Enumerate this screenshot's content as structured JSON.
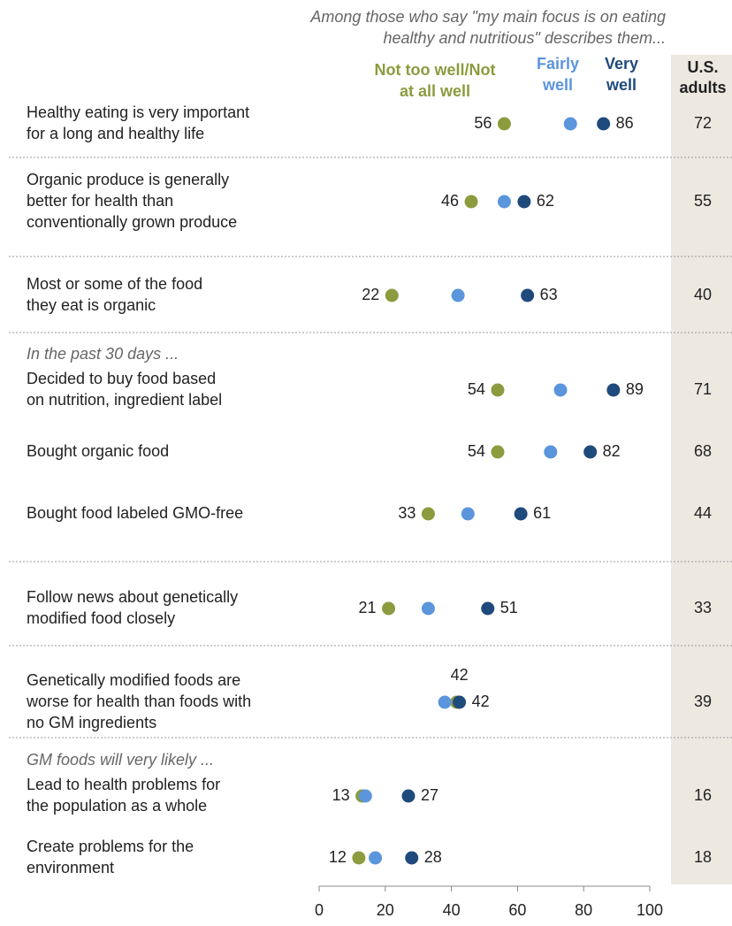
{
  "chart_data": {
    "type": "dot",
    "subtitle": [
      "Among those who say \"my main focus is on eating",
      "healthy and nutritious\" describes them..."
    ],
    "categories": [
      [
        "Healthy eating is very important",
        "for a long and healthy life"
      ],
      [
        "Organic produce is generally",
        "better for health than",
        "conventionally grown produce"
      ],
      [
        "Most or some of the food",
        "they eat is organic"
      ],
      [
        "Decided to buy food based",
        "on nutrition, ingredient label"
      ],
      [
        "Bought organic food"
      ],
      [
        "Bought food labeled GMO-free"
      ],
      [
        "Follow news about genetically",
        "modified food closely"
      ],
      [
        "Genetically modified foods are",
        "worse for health than foods with",
        "no GM ingredients"
      ],
      [
        "Lead to health problems for",
        "the population as a whole"
      ],
      [
        "Create problems for the",
        "environment"
      ]
    ],
    "row_notes": [
      null,
      null,
      null,
      "In the past 30 days ...",
      null,
      null,
      null,
      null,
      "GM foods will very likely ...",
      null
    ],
    "series": [
      {
        "name": [
          "Not too well/Not",
          "at all well"
        ],
        "color": "#8c9b3e",
        "values": [
          56,
          46,
          22,
          54,
          54,
          33,
          21,
          41.6,
          13,
          12
        ],
        "value_labels": [
          "56",
          "46",
          "22",
          "54",
          "54",
          "33",
          "21",
          "42",
          "13",
          "12"
        ]
      },
      {
        "name": [
          "Fairly",
          "well"
        ],
        "color": "#5b95dc",
        "values": [
          76,
          56,
          42,
          73,
          70,
          45,
          33,
          38,
          14,
          17
        ]
      },
      {
        "name": [
          "Very",
          "well"
        ],
        "color": "#1f4a7c",
        "values": [
          86,
          62,
          63,
          89,
          82,
          61,
          51,
          42.4,
          27,
          28
        ],
        "value_labels": [
          "86",
          "62",
          "63",
          "89",
          "82",
          "61",
          "51",
          "42",
          "27",
          "28"
        ]
      }
    ],
    "us_adults": {
      "title": [
        "U.S.",
        "adults"
      ],
      "values": [
        72,
        55,
        40,
        71,
        68,
        44,
        33,
        39,
        16,
        18
      ]
    },
    "xlim": [
      0,
      100
    ],
    "xticks": [
      0,
      20,
      40,
      60,
      80,
      100
    ]
  }
}
